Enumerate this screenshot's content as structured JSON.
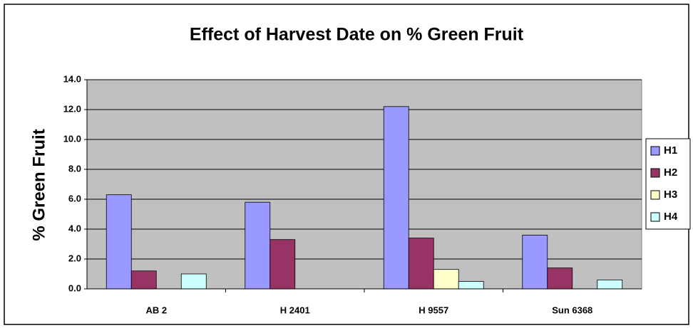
{
  "chart_data": {
    "type": "bar",
    "title": "Effect of Harvest Date on % Green Fruit",
    "y_label": "% Green Fruit",
    "categories": [
      "AB 2",
      "H 2401",
      "H 9557",
      "Sun 6368"
    ],
    "series": [
      {
        "name": "H1",
        "color": "#9999ff",
        "values": [
          6.3,
          5.8,
          12.2,
          3.6
        ]
      },
      {
        "name": "H2",
        "color": "#993366",
        "values": [
          1.2,
          3.3,
          3.4,
          1.4
        ]
      },
      {
        "name": "H3",
        "color": "#ffffcc",
        "values": [
          0,
          0,
          1.3,
          0
        ]
      },
      {
        "name": "H4",
        "color": "#ccffff",
        "values": [
          1.0,
          0,
          0.5,
          0.6
        ]
      }
    ],
    "ylim": [
      0,
      14
    ],
    "yticks": [
      {
        "value": 0,
        "label": "0.0"
      },
      {
        "value": 2,
        "label": "2.0"
      },
      {
        "value": 4,
        "label": "4.0"
      },
      {
        "value": 6,
        "label": "6.0"
      },
      {
        "value": 8,
        "label": "8.0"
      },
      {
        "value": 10,
        "label": "10.0"
      },
      {
        "value": 12,
        "label": "12.0"
      },
      {
        "value": 14,
        "label": "14.0"
      }
    ],
    "grid": true,
    "legend": "right",
    "plot_background": "#c0c0c0"
  }
}
